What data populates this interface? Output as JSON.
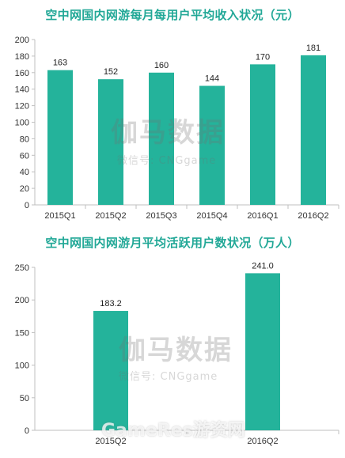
{
  "chart_data": [
    {
      "type": "bar",
      "title": "空中网国内网游每月每用户平均收入状况（元）",
      "categories": [
        "2015Q1",
        "2015Q2",
        "2015Q3",
        "2015Q4",
        "2016Q1",
        "2016Q2"
      ],
      "values": [
        163,
        152,
        160,
        144,
        170,
        181
      ],
      "data_labels": [
        "163",
        "152",
        "160",
        "144",
        "170",
        "181"
      ],
      "ylim": [
        0,
        200
      ],
      "yticks": [
        0,
        20,
        40,
        60,
        80,
        100,
        120,
        140,
        160,
        180,
        200
      ],
      "grid": false,
      "color": "#24b39b"
    },
    {
      "type": "bar",
      "title": "空中网国内网游月平均活跃用户数状况（万人）",
      "categories": [
        "2015Q2",
        "2016Q2"
      ],
      "values": [
        183.2,
        241.0
      ],
      "data_labels": [
        "183.2",
        "241.0"
      ],
      "ylim": [
        0,
        250
      ],
      "yticks": [
        0,
        50,
        100,
        150,
        200,
        250
      ],
      "grid": false,
      "color": "#24b39b"
    }
  ],
  "watermarks": {
    "logo_text": "伽马数据",
    "wechat_text": "微信号: CNGgame",
    "corner_text": "GameRes游资网"
  }
}
